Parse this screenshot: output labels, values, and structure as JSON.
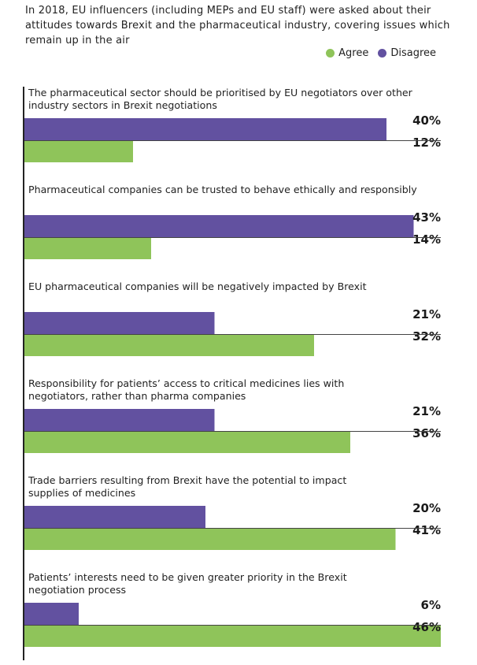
{
  "chart_data": {
    "type": "bar",
    "orientation": "horizontal",
    "title": "In 2018, EU influencers (including MEPs and EU staff) were asked about their attitudes towards Brexit and the pharmaceutical industry, covering issues which remain up in the air",
    "legend": [
      {
        "name": "Agree",
        "color": "#8fc45a"
      },
      {
        "name": "Disagree",
        "color": "#6251a0"
      }
    ],
    "xlim": [
      0,
      50
    ],
    "value_suffix": "%",
    "categories": [
      [
        "The pharmaceutical sector should be prioritised by EU negotiators over other",
        "industry sectors in Brexit negotiations"
      ],
      [
        "Pharmaceutical companies can be trusted to behave ethically and responsibly"
      ],
      [
        "EU pharmaceutical companies will be negatively impacted by Brexit"
      ],
      [
        "Responsibility for patients’ access to critical medicines lies with",
        "negotiators, rather than pharma companies"
      ],
      [
        "Trade barriers resulting from Brexit have the potential to impact",
        "supplies of medicines"
      ],
      [
        "Patients’ interests need to be given greater priority in the Brexit",
        "negotiation process"
      ]
    ],
    "series": [
      {
        "name": "Disagree",
        "values": [
          40,
          43,
          21,
          21,
          20,
          6
        ]
      },
      {
        "name": "Agree",
        "values": [
          12,
          14,
          32,
          36,
          41,
          46
        ]
      }
    ]
  },
  "colors": {
    "agree": "#8fc45a",
    "disagree": "#6251a0",
    "axis": "#222222",
    "separator": "#444444"
  }
}
